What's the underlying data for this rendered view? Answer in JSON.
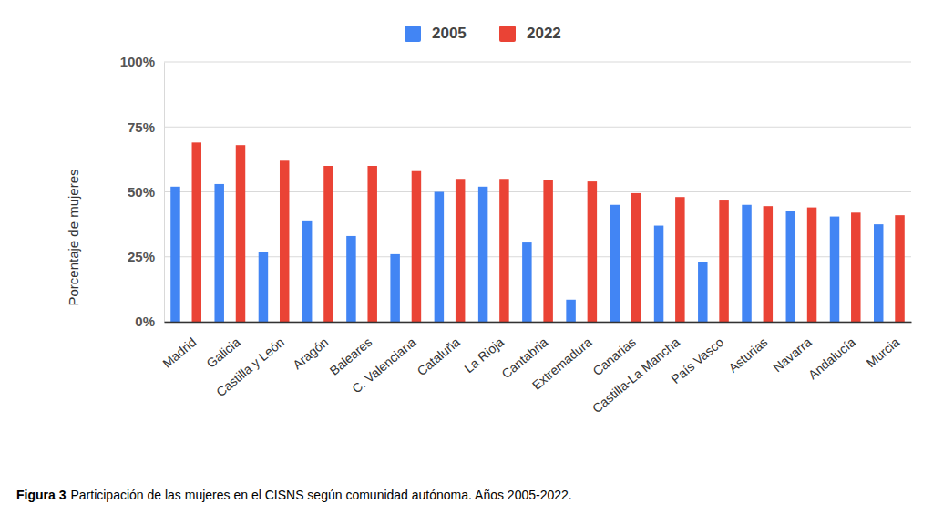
{
  "chart_data": {
    "type": "bar",
    "y_label": "Porcentaje de mujeres",
    "caption": {
      "label": "Figura 3",
      "text": "Participación de las mujeres en el CISNS según comunidad autónoma. Años 2005-2022."
    },
    "categories": [
      "Madrid",
      "Galicia",
      "Castilla y León",
      "Aragón",
      "Baleares",
      "C. Valenciana",
      "Cataluña",
      "La Rioja",
      "Cantabria",
      "Extremadura",
      "Canarias",
      "Castilla-La Mancha",
      "País Vasco",
      "Asturias",
      "Navarra",
      "Andalucía",
      "Murcia"
    ],
    "series": [
      {
        "name": "2005",
        "color": "#4285f4",
        "values": [
          52,
          53,
          27,
          39,
          33,
          26,
          50,
          52,
          30.5,
          8.5,
          45,
          37,
          23,
          45,
          42.5,
          40.5,
          37.5
        ]
      },
      {
        "name": "2022",
        "color": "#ea4335",
        "values": [
          69,
          68,
          62,
          60,
          60,
          58,
          55,
          55,
          54.5,
          54,
          49.5,
          48,
          47,
          44.5,
          44,
          42,
          41
        ]
      }
    ],
    "ylim": [
      0,
      100
    ],
    "yticks": [
      {
        "value": 0,
        "label": "0%"
      },
      {
        "value": 25,
        "label": "25%"
      },
      {
        "value": 50,
        "label": "50%"
      },
      {
        "value": 75,
        "label": "75%"
      },
      {
        "value": 100,
        "label": "100%"
      }
    ],
    "grid": true,
    "legend": "top"
  }
}
